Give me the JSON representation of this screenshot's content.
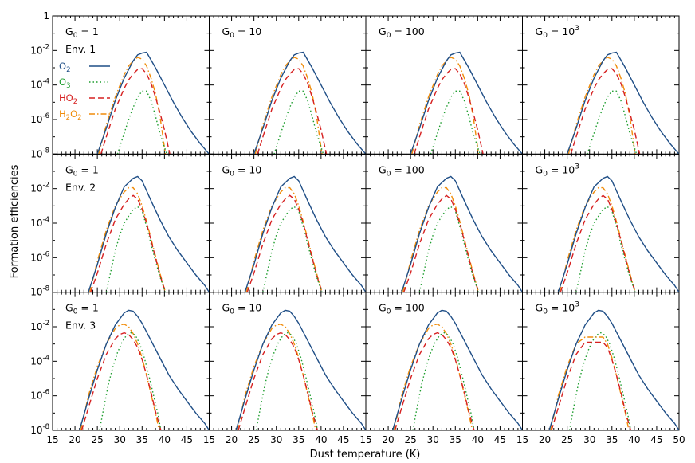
{
  "figure": {
    "xlabel": "Dust temperature (K)",
    "ylabel": "Formation efficiencies"
  },
  "chart_data": {
    "type": "line",
    "layout": "3 rows x 4 columns of panels, shared axes",
    "xlabel": "Dust temperature (K)",
    "ylabel": "Formation efficiencies",
    "xlim": [
      15,
      50
    ],
    "ylim": [
      1e-08,
      1
    ],
    "yscale": "log",
    "x_ticks": [
      "15",
      "20",
      "25",
      "30",
      "35",
      "40",
      "45"
    ],
    "x_ticks_last": [
      "15",
      "20",
      "25",
      "30",
      "35",
      "40",
      "45",
      "50"
    ],
    "y_ticks": [
      {
        "base": "",
        "exp": "",
        "plain": "1",
        "value": 1
      },
      {
        "base": "10",
        "exp": "-2",
        "plain": "",
        "value": 0.01
      },
      {
        "base": "10",
        "exp": "-4",
        "plain": "",
        "value": 0.0001
      },
      {
        "base": "10",
        "exp": "-6",
        "plain": "",
        "value": 1e-06
      },
      {
        "base": "10",
        "exp": "-8",
        "plain": "",
        "value": 1e-08
      }
    ],
    "legend": {
      "placement": "top-left of first panel",
      "entries": [
        {
          "series": "O2",
          "main": "O",
          "sub": "2",
          "main2": "",
          "sub2": "",
          "style": "solid",
          "color": "#1f4e86"
        },
        {
          "series": "O3",
          "main": "O",
          "sub": "3",
          "main2": "",
          "sub2": "",
          "style": "dotted",
          "color": "#1f9e2f"
        },
        {
          "series": "HO2",
          "main": "HO",
          "sub": "2",
          "main2": "",
          "sub2": "",
          "style": "dashed",
          "color": "#d62020"
        },
        {
          "series": "H2O2",
          "main": "H",
          "sub": "2",
          "main2": "O",
          "sub2": "2",
          "style": "dashdot",
          "color": "#f08c0a"
        }
      ]
    },
    "columns": [
      {
        "G0_text": "G",
        "G0_sub": "0",
        "G0_eq": " = ",
        "G0_val": "1",
        "G0_sup": ""
      },
      {
        "G0_text": "G",
        "G0_sub": "0",
        "G0_eq": " = ",
        "G0_val": "10",
        "G0_sup": ""
      },
      {
        "G0_text": "G",
        "G0_sub": "0",
        "G0_eq": " = ",
        "G0_val": "100",
        "G0_sup": ""
      },
      {
        "G0_text": "G",
        "G0_sub": "0",
        "G0_eq": " = ",
        "G0_val": "10",
        "G0_sup": "3"
      }
    ],
    "rows": [
      {
        "env": "Env. 1",
        "series_points": {
          "O2": {
            "x": [
              25,
              27,
              29,
              31,
              33,
              34,
              35,
              36,
              38,
              40,
              42,
              44,
              46,
              48,
              50
            ],
            "y": [
              -8,
              -6.5,
              -4.9,
              -3.6,
              -2.6,
              -2.25,
              -2.15,
              -2.1,
              -3.0,
              -4.0,
              -5.0,
              -5.9,
              -6.7,
              -7.4,
              -8
            ]
          },
          "O3": {
            "x": [
              29.5,
              31,
              32,
              33,
              34,
              35,
              36,
              37,
              38,
              39,
              40.5
            ],
            "y": [
              -8,
              -6.8,
              -6.0,
              -5.3,
              -4.7,
              -4.35,
              -4.35,
              -4.9,
              -5.8,
              -6.8,
              -8
            ]
          },
          "HO2": {
            "x": [
              25.8,
              27,
              29,
              31,
              32,
              33,
              34,
              35,
              36,
              37,
              38,
              39,
              40,
              41.2
            ],
            "y": [
              -8,
              -7.0,
              -5.4,
              -4.2,
              -3.7,
              -3.35,
              -3.1,
              -3.05,
              -3.35,
              -3.9,
              -4.7,
              -5.6,
              -6.6,
              -8
            ]
          },
          "H2O2": {
            "x": [
              25.3,
              27,
              29,
              31,
              32,
              33,
              34,
              35,
              36,
              37,
              38,
              39,
              40.2
            ],
            "y": [
              -8,
              -6.3,
              -4.7,
              -3.4,
              -2.9,
              -2.6,
              -2.4,
              -2.5,
              -2.9,
              -3.6,
              -4.5,
              -5.8,
              -8
            ]
          }
        }
      },
      {
        "env": "Env. 2",
        "series_points": {
          "O2": {
            "x": [
              23,
              25,
              27,
              29,
              31,
              33,
              34,
              35,
              37,
              39,
              41,
              43,
              45,
              47,
              49,
              50
            ],
            "y": [
              -8,
              -6.4,
              -4.6,
              -3.1,
              -1.9,
              -1.4,
              -1.3,
              -1.55,
              -2.7,
              -3.8,
              -4.8,
              -5.6,
              -6.3,
              -7.0,
              -7.6,
              -8
            ]
          },
          "O3": {
            "x": [
              27,
              28,
              29,
              30,
              31,
              32,
              33,
              34,
              35,
              36,
              37,
              38,
              39,
              40.2
            ],
            "y": [
              -8,
              -6.8,
              -5.6,
              -4.7,
              -4.0,
              -3.6,
              -3.2,
              -3.05,
              -3.3,
              -4.2,
              -5.2,
              -6.2,
              -7.1,
              -8
            ]
          },
          "HO2": {
            "x": [
              23.5,
              25,
              27,
              29,
              31,
              32,
              33,
              34,
              35,
              36,
              37,
              38,
              39,
              40.2
            ],
            "y": [
              -8,
              -6.9,
              -5.2,
              -3.8,
              -2.9,
              -2.6,
              -2.4,
              -2.6,
              -3.2,
              -4.0,
              -5.0,
              -6.0,
              -7.0,
              -8
            ]
          },
          "H2O2": {
            "x": [
              23.3,
              25,
              27,
              29,
              31,
              32,
              33,
              34,
              35,
              36,
              37,
              38,
              39,
              40.2
            ],
            "y": [
              -8,
              -6.2,
              -4.4,
              -3.0,
              -2.2,
              -1.95,
              -1.95,
              -2.3,
              -3.0,
              -3.9,
              -4.9,
              -5.9,
              -6.9,
              -8
            ]
          }
        }
      },
      {
        "env": "Env. 3",
        "series_points": {
          "O2": {
            "x": [
              21,
              23,
              25,
              27,
              29,
              31,
              32,
              33,
              34,
              35,
              37,
              39,
              41,
              43,
              45,
              47,
              49,
              50
            ],
            "y": [
              -8,
              -6.2,
              -4.5,
              -3.0,
              -1.9,
              -1.2,
              -1.05,
              -1.1,
              -1.4,
              -1.8,
              -2.8,
              -3.8,
              -4.8,
              -5.6,
              -6.3,
              -7.0,
              -7.6,
              -8
            ]
          },
          "O3": {
            "x": [
              25.5,
              26.5,
              27.5,
              28.5,
              29.5,
              30.5,
              31.5,
              32.5,
              33.5,
              34.5,
              35.5,
              36.5,
              37.5,
              38.5,
              39.2
            ],
            "y": [
              -8,
              -6.6,
              -5.3,
              -4.3,
              -3.5,
              -2.9,
              -2.5,
              -2.35,
              -2.5,
              -3.0,
              -3.8,
              -4.8,
              -5.9,
              -7.0,
              -8
            ]
          },
          "HO2": {
            "x": [
              21.5,
              23,
              25,
              27,
              29,
              30,
              31,
              32,
              33,
              34,
              35,
              36,
              37,
              38,
              39.2
            ],
            "y": [
              -8,
              -6.7,
              -5.0,
              -3.6,
              -2.7,
              -2.45,
              -2.35,
              -2.45,
              -2.75,
              -3.2,
              -3.9,
              -4.8,
              -5.8,
              -6.9,
              -8
            ]
          },
          "H2O2": {
            "x": [
              21.3,
              23,
              25,
              27,
              29,
              30,
              31,
              32,
              33,
              34,
              35,
              36,
              37,
              38,
              38.8
            ],
            "y": [
              -8,
              -6.0,
              -4.3,
              -3.0,
              -2.1,
              -1.9,
              -1.85,
              -2.0,
              -2.4,
              -3.0,
              -3.8,
              -4.8,
              -5.9,
              -7.0,
              -8
            ]
          }
        }
      }
    ]
  }
}
